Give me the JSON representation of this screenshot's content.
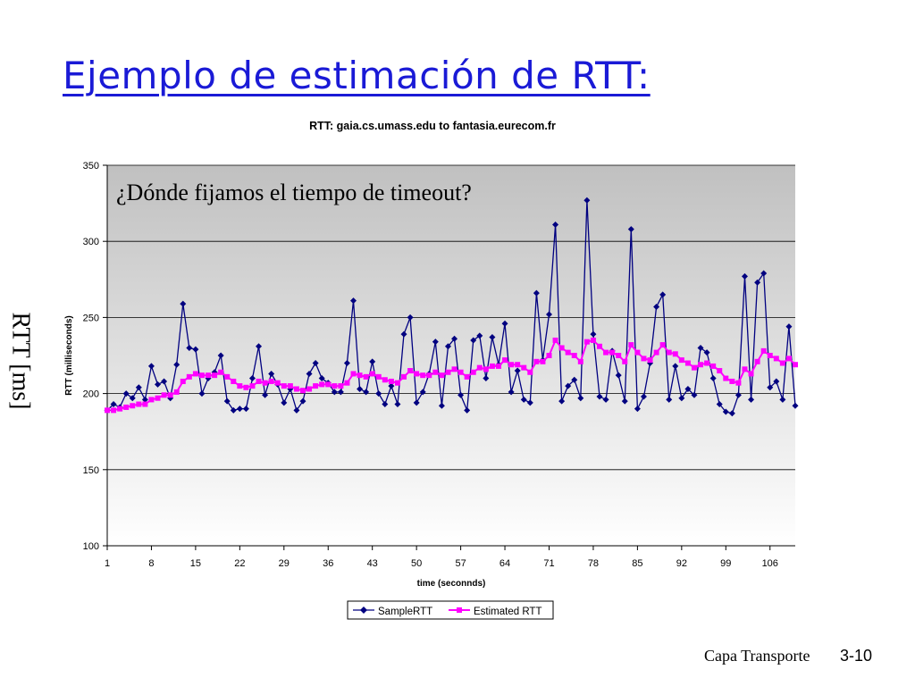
{
  "slide": {
    "title": "Ejemplo de estimación de RTT:",
    "side_label": "RTT [ms]",
    "footer_section": "Capa Transporte",
    "footer_page": "3-10"
  },
  "chart_data": {
    "type": "line",
    "title": "RTT: gaia.cs.umass.edu to fantasia.eurecom.fr",
    "annotation": "¿Dónde fijamos el tiempo de timeout?",
    "xlabel": "time (seconnds)",
    "ylabel": "RTT (milliseconds)",
    "ylim": [
      100,
      350
    ],
    "yticks": [
      "100",
      "150",
      "200",
      "250",
      "300",
      "350"
    ],
    "xlim": [
      1,
      110
    ],
    "xticks": [
      "1",
      "8",
      "15",
      "22",
      "29",
      "36",
      "43",
      "50",
      "57",
      "64",
      "71",
      "78",
      "85",
      "92",
      "99",
      "106"
    ],
    "grid": true,
    "legend_position": "bottom",
    "colors": {
      "sample": "#000080",
      "estimated": "#ff00ff",
      "plot_bg_top": "#c0c0c0",
      "plot_bg_bottom": "#ffffff"
    },
    "series": [
      {
        "name": "SampleRTT",
        "marker": "diamond",
        "values": [
          189,
          193,
          191,
          200,
          197,
          204,
          196,
          218,
          206,
          208,
          197,
          219,
          259,
          230,
          229,
          200,
          210,
          214,
          225,
          195,
          189,
          190,
          190,
          210,
          231,
          199,
          213,
          206,
          194,
          203,
          189,
          195,
          213,
          220,
          210,
          207,
          201,
          201,
          220,
          261,
          203,
          201,
          221,
          200,
          193,
          205,
          193,
          239,
          250,
          194,
          201,
          213,
          234,
          192,
          231,
          236,
          199,
          189,
          235,
          238,
          210,
          237,
          219,
          246,
          201,
          215,
          196,
          194,
          266,
          222,
          252,
          311,
          195,
          205,
          209,
          197,
          327,
          239,
          198,
          196,
          228,
          212,
          195,
          308,
          190,
          198,
          220,
          257,
          265,
          196,
          218,
          197,
          203,
          199,
          230,
          227,
          210,
          193,
          188,
          187,
          199,
          277,
          196,
          273,
          279,
          204,
          208,
          196,
          244,
          192
        ]
      },
      {
        "name": "Estimated RTT",
        "marker": "square",
        "values": [
          189,
          189,
          190,
          191,
          192,
          193,
          193,
          196,
          197,
          199,
          199,
          201,
          208,
          211,
          213,
          212,
          212,
          212,
          214,
          211,
          208,
          205,
          204,
          205,
          208,
          207,
          208,
          207,
          205,
          205,
          203,
          202,
          203,
          205,
          206,
          206,
          205,
          205,
          207,
          213,
          212,
          211,
          213,
          211,
          209,
          208,
          207,
          211,
          215,
          213,
          212,
          212,
          214,
          212,
          214,
          216,
          214,
          211,
          214,
          217,
          216,
          218,
          218,
          222,
          219,
          219,
          217,
          214,
          221,
          221,
          225,
          235,
          230,
          227,
          225,
          221,
          234,
          235,
          231,
          227,
          227,
          225,
          221,
          232,
          227,
          223,
          222,
          227,
          232,
          227,
          226,
          222,
          220,
          217,
          219,
          220,
          218,
          215,
          210,
          208,
          207,
          216,
          213,
          221,
          228,
          225,
          223,
          220,
          223,
          219
        ]
      }
    ]
  }
}
